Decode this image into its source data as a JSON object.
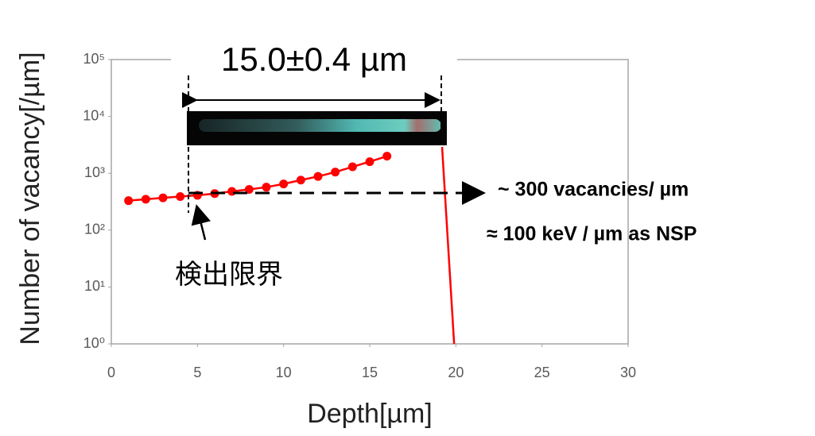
{
  "chart_data": {
    "type": "line",
    "y_log": true,
    "xlabel": "Depth[µm]",
    "ylabel": "Number of vacancy[/µm]",
    "xlim": [
      0,
      30
    ],
    "xticks": [
      0,
      5,
      10,
      15,
      20,
      25,
      30
    ],
    "ylim": [
      1,
      100000
    ],
    "yticks": [
      {
        "value": 1,
        "label": "10⁰"
      },
      {
        "value": 10,
        "label": "10¹"
      },
      {
        "value": 100,
        "label": "10²"
      },
      {
        "value": 1000,
        "label": "10³"
      },
      {
        "value": 10000,
        "label": "10⁴"
      },
      {
        "value": 100000,
        "label": "10⁵"
      }
    ],
    "series": [
      {
        "color": "#ff0000",
        "marker": true,
        "x": [
          1,
          2,
          3,
          4,
          5,
          6,
          7,
          8,
          9,
          10,
          11,
          12,
          13,
          14,
          15,
          16
        ],
        "values": [
          330,
          350,
          370,
          390,
          410,
          440,
          480,
          520,
          570,
          650,
          760,
          880,
          1050,
          1300,
          1600,
          2000
        ]
      },
      {
        "color": "#ff0000",
        "marker": false,
        "x": [
          19.2,
          19.9
        ],
        "values": [
          2900,
          1
        ]
      }
    ],
    "annotations": {
      "range": "15.0±0.4 µm",
      "limit": "検出限界",
      "rate": "~ 300 vacancies/ µm",
      "energy": "≈ 100 keV / µm as NSP"
    }
  }
}
